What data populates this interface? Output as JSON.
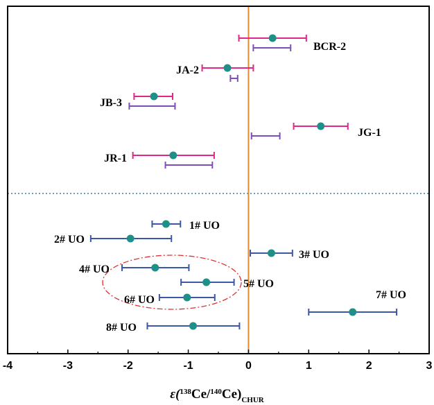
{
  "chart_data": {
    "type": "scatter",
    "title": "",
    "xlabel": {
      "prefix": "ε(",
      "mass1": "138",
      "el1": "Ce/",
      "mass2": "140",
      "el2": "Ce)",
      "sub": "CHUR"
    },
    "ylabel": "",
    "xlim": [
      -4,
      3
    ],
    "x_ticks": [
      "-4",
      "-3",
      "-2",
      "-1",
      "0",
      "1",
      "2",
      "3"
    ],
    "x_tick_values": [
      -4,
      -3,
      -2,
      -1,
      0,
      1,
      2,
      3
    ],
    "grid": false,
    "reference_line": {
      "x": 0,
      "color": "#e8892c"
    },
    "divider": {
      "style": "dotted",
      "color": "#3a7fa8"
    },
    "colors": {
      "this_study": "#e0268a",
      "reference": "#7d4eb8",
      "uo": "#3a57a8",
      "marker": "#1e9088",
      "ellipse": "#e03030"
    },
    "standards": [
      {
        "label": "BCR-2",
        "value": 0.4,
        "err_low": -0.16,
        "err_high": 0.96,
        "ref_low": 0.08,
        "ref_high": 0.7
      },
      {
        "label": "JA-2",
        "value": -0.35,
        "err_low": -0.77,
        "err_high": 0.08,
        "ref_low": -0.3,
        "ref_high": -0.18
      },
      {
        "label": "JB-3",
        "value": -1.57,
        "err_low": -1.9,
        "err_high": -1.26,
        "ref_low": -1.98,
        "ref_high": -1.22
      },
      {
        "label": "JG-1",
        "value": 1.2,
        "err_low": 0.75,
        "err_high": 1.65,
        "ref_low": 0.05,
        "ref_high": 0.52
      },
      {
        "label": "JR-1",
        "value": -1.25,
        "err_low": -1.92,
        "err_high": -0.57,
        "ref_low": -1.38,
        "ref_high": -0.6
      }
    ],
    "uo_samples": [
      {
        "label": "1# UO",
        "value": -1.37,
        "err_low": -1.6,
        "err_high": -1.13
      },
      {
        "label": "2# UO",
        "value": -1.96,
        "err_low": -2.62,
        "err_high": -1.28
      },
      {
        "label": "3# UO",
        "value": 0.38,
        "err_low": 0.03,
        "err_high": 0.73
      },
      {
        "label": "4# UO",
        "value": -1.55,
        "err_low": -2.1,
        "err_high": -0.99
      },
      {
        "label": "5# UO",
        "value": -0.7,
        "err_low": -1.12,
        "err_high": -0.24
      },
      {
        "label": "6# UO",
        "value": -1.02,
        "err_low": -1.48,
        "err_high": -0.56
      },
      {
        "label": "7# UO",
        "value": 1.73,
        "err_low": 1.0,
        "err_high": 2.46
      },
      {
        "label": "8# UO",
        "value": -0.92,
        "err_low": -1.68,
        "err_high": -0.15
      }
    ]
  }
}
